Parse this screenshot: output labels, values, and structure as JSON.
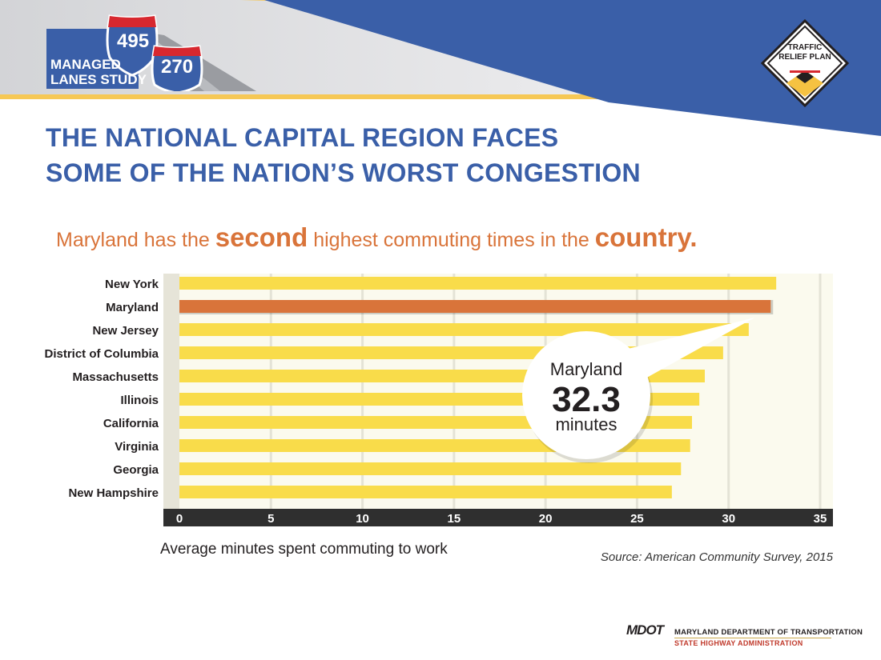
{
  "header": {
    "logo_line1": "MANAGED",
    "logo_line2": "LANES STUDY",
    "shield_1": "495",
    "shield_2": "270",
    "badge_line1": "TRAFFIC",
    "badge_line2": "RELIEF PLAN"
  },
  "headline": {
    "line1": "THE NATIONAL CAPITAL REGION FACES",
    "line2": "SOME OF THE NATION’S WORST CONGESTION"
  },
  "subtitle": {
    "part1": "Maryland has the ",
    "em1": "second",
    "part2": " highest commuting times in the ",
    "em2": "country."
  },
  "chart_data": {
    "type": "bar",
    "orientation": "horizontal",
    "categories": [
      "New York",
      "Maryland",
      "New Jersey",
      "District of Columbia",
      "Massachusetts",
      "Illinois",
      "California",
      "Virginia",
      "Georgia",
      "New Hampshire"
    ],
    "values": [
      32.6,
      32.3,
      31.1,
      29.7,
      28.7,
      28.4,
      28.0,
      27.9,
      27.4,
      26.9
    ],
    "highlight": "Maryland",
    "xlim": [
      0,
      35
    ],
    "xticks": [
      "0",
      "5",
      "10",
      "15",
      "20",
      "25",
      "30",
      "35"
    ],
    "xlabel": "Average minutes spent commuting to work",
    "grid": true,
    "colors": {
      "bar": "#f9dc4a",
      "highlight": "#d9743a",
      "axis": "#2f2f2f",
      "plot_bg": "#fbfaee",
      "grid": "#e4e3d6"
    }
  },
  "callout": {
    "state": "Maryland",
    "value": "32.3",
    "unit": "minutes"
  },
  "source": "Source: American Community Survey, 2015",
  "footer": {
    "mdot": "MDOT",
    "line1": "MARYLAND DEPARTMENT OF TRANSPORTATION",
    "line2": "STATE HIGHWAY ADMINISTRATION"
  },
  "colors": {
    "brand_blue": "#3a5fa8",
    "banner_gray": "#dcdde0",
    "accent_yellow": "#f5c242",
    "accent_orange": "#d9743a",
    "shield_red": "#d7282f"
  }
}
